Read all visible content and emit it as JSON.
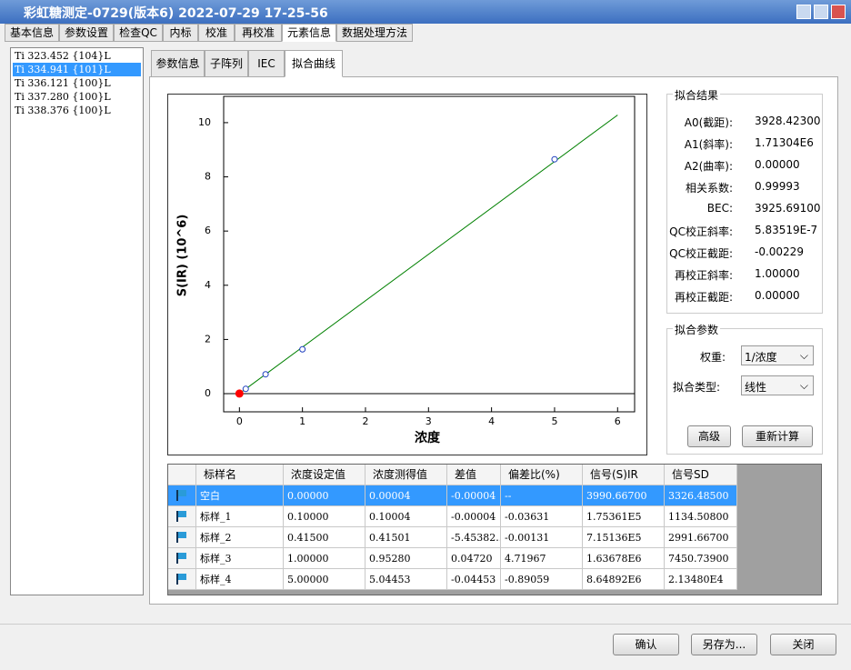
{
  "window": {
    "title": "彩虹糖测定-0729(版本6) 2022-07-29 17-25-56"
  },
  "tabs": [
    "基本信息",
    "参数设置",
    "检查QC",
    "内标",
    "校准",
    "再校准",
    "元素信息",
    "数据处理方法"
  ],
  "active_tab": 6,
  "lines": [
    "Ti 323.452 {104}L",
    "Ti 334.941 {101}L",
    "Ti 336.121 {100}L",
    "Ti 337.280 {100}L",
    "Ti 338.376 {100}L"
  ],
  "selected_line": 1,
  "subtabs": [
    "参数信息",
    "子阵列",
    "IEC",
    "拟合曲线"
  ],
  "active_subtab": 3,
  "chart_data": {
    "type": "scatter",
    "x_label": "浓度",
    "y_label": "S(IR) (10^6)",
    "xlim": [
      -0.25,
      6.27
    ],
    "ylim": [
      -0.67,
      10.97
    ],
    "xticks": [
      0,
      1,
      2,
      3,
      4,
      5,
      6
    ],
    "yticks": [
      0,
      2,
      4,
      6,
      8,
      10
    ],
    "zero_line": true,
    "series": [
      {
        "style": "line",
        "color": "#008000",
        "x": [
          0,
          6
        ],
        "values": [
          0.0039,
          10.28
        ]
      },
      {
        "style": "open-marker",
        "color": "#1f3fbf",
        "x": [
          0.1,
          0.415,
          1,
          5
        ],
        "values": [
          0.175,
          0.715,
          1.637,
          8.649
        ]
      },
      {
        "style": "filled-marker",
        "color": "#ff0000",
        "x": [
          0
        ],
        "values": [
          0.004
        ]
      }
    ]
  },
  "fit_result": {
    "title": "拟合结果",
    "rows": [
      [
        "A0(截距):",
        "3928.42300"
      ],
      [
        "A1(斜率):",
        "1.71304E6"
      ],
      [
        "A2(曲率):",
        "0.00000"
      ],
      [
        "相关系数:",
        "0.99993"
      ],
      [
        "BEC:",
        "3925.69100"
      ],
      [
        "QC校正斜率:",
        "5.83519E-7"
      ],
      [
        "QC校正截距:",
        "-0.00229"
      ],
      [
        "再校正斜率:",
        "1.00000"
      ],
      [
        "再校正截距:",
        "0.00000"
      ]
    ]
  },
  "fit_params": {
    "title": "拟合参数",
    "weight_label": "权重:",
    "weight_value": "1/浓度",
    "type_label": "拟合类型:",
    "type_value": "线性",
    "advanced": "高级",
    "recalc": "重新计算"
  },
  "table": {
    "headers": [
      "标样名",
      "浓度设定值",
      "浓度测得值",
      "差值",
      "偏差比(%)",
      "信号(S)IR",
      "信号SD"
    ],
    "rows": [
      [
        "空白",
        "0.00000",
        "0.00004",
        "-0.00004",
        "--",
        "3990.66700",
        "3326.48500"
      ],
      [
        "标样_1",
        "0.10000",
        "0.10004",
        "-0.00004",
        "-0.03631",
        "1.75361E5",
        "1134.50800"
      ],
      [
        "标样_2",
        "0.41500",
        "0.41501",
        "-5.45382...",
        "-0.00131",
        "7.15136E5",
        "2991.66700"
      ],
      [
        "标样_3",
        "1.00000",
        "0.95280",
        "0.04720",
        "4.71967",
        "1.63678E6",
        "7450.73900"
      ],
      [
        "标样_4",
        "5.00000",
        "5.04453",
        "-0.04453",
        "-0.89059",
        "8.64892E6",
        "2.13480E4"
      ]
    ],
    "selected_row": 0
  },
  "buttons": [
    "确认",
    "另存为...",
    "关闭"
  ]
}
